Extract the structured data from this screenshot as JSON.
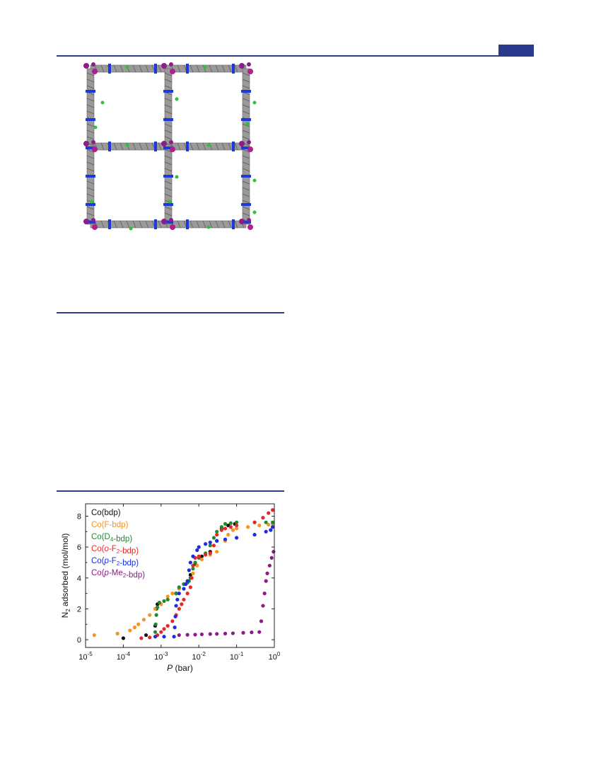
{
  "chart_data": {
    "type": "scatter",
    "xscale": "log",
    "xlim": [
      1e-05,
      1
    ],
    "ylim": [
      -0.5,
      8.8
    ],
    "xlabel_italic": "P",
    "xlabel_unit": " (bar)",
    "ylabel_parts": [
      "N",
      "2",
      " adsorbed (mol/mol)"
    ],
    "x_ticks": [
      {
        "value": 1e-05,
        "base": "10",
        "exp": "-5"
      },
      {
        "value": 0.0001,
        "base": "10",
        "exp": "-4"
      },
      {
        "value": 0.001,
        "base": "10",
        "exp": "-3"
      },
      {
        "value": 0.01,
        "base": "10",
        "exp": "-2"
      },
      {
        "value": 0.1,
        "base": "10",
        "exp": "-1"
      },
      {
        "value": 1,
        "base": "10",
        "exp": "0"
      }
    ],
    "y_ticks": [
      0,
      2,
      4,
      6,
      8
    ],
    "legend_position": "top-left",
    "series": [
      {
        "key": "bdp",
        "color": "#111111",
        "legend": [
          {
            "t": "Co(bdp)"
          }
        ],
        "points": [
          [
            0.0001,
            0.1
          ],
          [
            0.0004,
            0.3
          ],
          [
            0.0007,
            0.9
          ],
          [
            0.00075,
            2.0
          ],
          [
            0.0008,
            2.3
          ],
          [
            0.0009,
            2.4
          ],
          [
            0.0025,
            3.0
          ],
          [
            0.004,
            3.6
          ],
          [
            0.006,
            4.2
          ],
          [
            0.008,
            4.9
          ],
          [
            0.012,
            5.4
          ],
          [
            0.02,
            5.7
          ],
          [
            0.03,
            6.4
          ],
          [
            0.04,
            7.2
          ],
          [
            0.06,
            7.4
          ],
          [
            0.09,
            7.5
          ]
        ]
      },
      {
        "key": "F",
        "color": "#f7931e",
        "legend": [
          {
            "t": "Co(F-bdp)"
          }
        ],
        "points": [
          [
            1.7e-05,
            0.3
          ],
          [
            7e-05,
            0.4
          ],
          [
            0.00015,
            0.6
          ],
          [
            0.0002,
            0.8
          ],
          [
            0.00025,
            1.0
          ],
          [
            0.00035,
            1.3
          ],
          [
            0.0005,
            1.6
          ],
          [
            0.0007,
            2.0
          ],
          [
            0.001,
            2.3
          ],
          [
            0.0015,
            2.8
          ],
          [
            0.002,
            3.0
          ],
          [
            0.003,
            3.3
          ],
          [
            0.004,
            3.6
          ],
          [
            0.005,
            3.8
          ],
          [
            0.007,
            4.3
          ],
          [
            0.009,
            4.8
          ],
          [
            0.012,
            5.2
          ],
          [
            0.02,
            5.5
          ],
          [
            0.03,
            5.7
          ],
          [
            0.05,
            6.4
          ],
          [
            0.06,
            6.8
          ],
          [
            0.08,
            7.1
          ],
          [
            0.1,
            7.2
          ],
          [
            0.2,
            7.3
          ],
          [
            0.4,
            7.4
          ],
          [
            0.7,
            7.45
          ],
          [
            0.9,
            7.5
          ]
        ]
      },
      {
        "key": "D4",
        "color": "#1e8c2a",
        "legend": [
          {
            "t": "Co(D"
          },
          {
            "t": "4",
            "sub": true
          },
          {
            "t": "-bdp)"
          }
        ],
        "points": [
          [
            0.0007,
            0.5
          ],
          [
            0.00072,
            1.0
          ],
          [
            0.00075,
            1.6
          ],
          [
            0.0008,
            2.1
          ],
          [
            0.0009,
            2.4
          ],
          [
            0.0012,
            2.5
          ],
          [
            0.0015,
            2.6
          ],
          [
            0.0025,
            3.0
          ],
          [
            0.003,
            3.4
          ],
          [
            0.004,
            3.6
          ],
          [
            0.005,
            3.7
          ],
          [
            0.0055,
            3.8
          ],
          [
            0.006,
            4.0
          ],
          [
            0.007,
            4.6
          ],
          [
            0.008,
            5.0
          ],
          [
            0.01,
            5.3
          ],
          [
            0.015,
            5.6
          ],
          [
            0.02,
            6.1
          ],
          [
            0.025,
            6.6
          ],
          [
            0.03,
            7.0
          ],
          [
            0.04,
            7.3
          ],
          [
            0.05,
            7.5
          ],
          [
            0.07,
            7.55
          ],
          [
            0.1,
            7.6
          ],
          [
            0.3,
            7.6
          ],
          [
            0.6,
            7.6
          ],
          [
            0.9,
            7.6
          ]
        ]
      },
      {
        "key": "oF2",
        "color": "#e8262a",
        "legend": [
          {
            "t": "Co("
          },
          {
            "t": "o",
            "italic": true
          },
          {
            "t": "-F"
          },
          {
            "t": "2",
            "sub": true
          },
          {
            "t": "-bdp)"
          }
        ],
        "points": [
          [
            0.0003,
            0.1
          ],
          [
            0.0005,
            0.15
          ],
          [
            0.0008,
            0.3
          ],
          [
            0.001,
            0.5
          ],
          [
            0.0012,
            0.7
          ],
          [
            0.0015,
            0.9
          ],
          [
            0.002,
            1.2
          ],
          [
            0.0025,
            1.6
          ],
          [
            0.003,
            2.0
          ],
          [
            0.0035,
            2.3
          ],
          [
            0.004,
            2.6
          ],
          [
            0.005,
            3.0
          ],
          [
            0.006,
            3.4
          ],
          [
            0.0065,
            4.0
          ],
          [
            0.007,
            4.8
          ],
          [
            0.008,
            5.3
          ],
          [
            0.01,
            5.4
          ],
          [
            0.015,
            5.5
          ],
          [
            0.02,
            5.6
          ],
          [
            0.025,
            6.1
          ],
          [
            0.03,
            6.8
          ],
          [
            0.04,
            7.1
          ],
          [
            0.05,
            7.2
          ],
          [
            0.07,
            7.3
          ],
          [
            0.1,
            7.4
          ],
          [
            0.3,
            7.6
          ],
          [
            0.5,
            7.9
          ],
          [
            0.7,
            8.2
          ],
          [
            0.9,
            8.4
          ]
        ]
      },
      {
        "key": "pF2",
        "color": "#1a2ee0",
        "legend": [
          {
            "t": "Co("
          },
          {
            "t": "p",
            "italic": true
          },
          {
            "t": "-F"
          },
          {
            "t": "2",
            "sub": true
          },
          {
            "t": "-bdp)"
          }
        ],
        "points": [
          [
            0.0007,
            0.2
          ],
          [
            0.0012,
            0.2
          ],
          [
            0.0022,
            0.2
          ],
          [
            0.0023,
            0.8
          ],
          [
            0.0024,
            1.5
          ],
          [
            0.0025,
            2.2
          ],
          [
            0.0027,
            2.6
          ],
          [
            0.003,
            3.0
          ],
          [
            0.004,
            3.3
          ],
          [
            0.0045,
            3.6
          ],
          [
            0.005,
            3.8
          ],
          [
            0.0055,
            4.5
          ],
          [
            0.006,
            5.0
          ],
          [
            0.007,
            5.4
          ],
          [
            0.009,
            5.8
          ],
          [
            0.01,
            6.0
          ],
          [
            0.015,
            6.2
          ],
          [
            0.02,
            6.3
          ],
          [
            0.03,
            6.4
          ],
          [
            0.05,
            6.5
          ],
          [
            0.1,
            6.6
          ],
          [
            0.3,
            6.8
          ],
          [
            0.6,
            7.0
          ],
          [
            0.8,
            7.1
          ],
          [
            0.9,
            7.3
          ]
        ]
      },
      {
        "key": "pMe2",
        "color": "#8b1a8b",
        "legend": [
          {
            "t": "Co("
          },
          {
            "t": "p",
            "italic": true
          },
          {
            "t": "-Me"
          },
          {
            "t": "2",
            "sub": true
          },
          {
            "t": "-bdp)"
          }
        ],
        "points": [
          [
            0.003,
            0.3
          ],
          [
            0.005,
            0.32
          ],
          [
            0.008,
            0.33
          ],
          [
            0.012,
            0.35
          ],
          [
            0.02,
            0.37
          ],
          [
            0.03,
            0.38
          ],
          [
            0.05,
            0.4
          ],
          [
            0.08,
            0.42
          ],
          [
            0.15,
            0.45
          ],
          [
            0.25,
            0.48
          ],
          [
            0.4,
            0.5
          ],
          [
            0.45,
            1.2
          ],
          [
            0.5,
            2.2
          ],
          [
            0.55,
            3.0
          ],
          [
            0.6,
            3.8
          ],
          [
            0.65,
            4.3
          ],
          [
            0.75,
            4.8
          ],
          [
            0.85,
            5.3
          ],
          [
            0.95,
            5.7
          ]
        ]
      }
    ]
  }
}
